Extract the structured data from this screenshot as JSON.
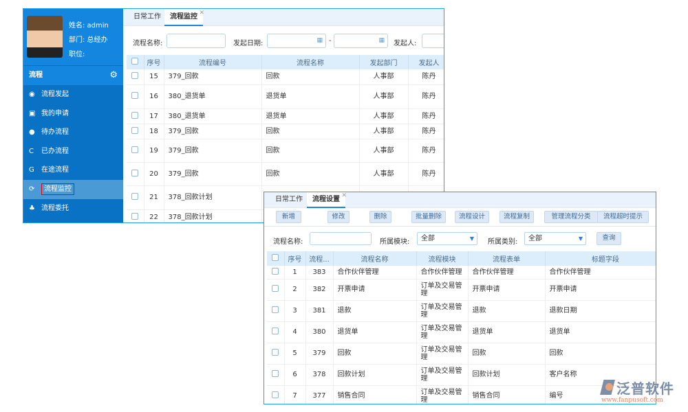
{
  "w1": {
    "profile": {
      "name": "姓名: admin",
      "dept": "部门: 总经办",
      "position": "职位:"
    },
    "section": "流程",
    "menu": [
      {
        "icon": "lightbulb-icon",
        "glyph": "◉",
        "label": "流程发起"
      },
      {
        "icon": "document-icon",
        "glyph": "▣",
        "label": "我的申请"
      },
      {
        "icon": "alert-icon",
        "glyph": "●",
        "label": "待办流程"
      },
      {
        "icon": "refresh-icon",
        "glyph": "C",
        "label": "已办流程"
      },
      {
        "icon": "google-plus-icon",
        "glyph": "G",
        "label": "在途流程"
      },
      {
        "icon": "sync-icon",
        "glyph": "⟳",
        "label": "流程监控"
      },
      {
        "icon": "sitemap-icon",
        "glyph": "♣",
        "label": "流程委托"
      }
    ],
    "active_menu": 5,
    "tabs": [
      "日常工作",
      "流程监控"
    ],
    "filters": {
      "name_label": "流程名称:",
      "date_label": "发起日期:",
      "dash": "-",
      "initiator_label": "发起人:"
    },
    "headers": [
      "序号",
      "流程编号",
      "流程名称",
      "发起部门",
      "发起人"
    ],
    "rows": [
      [
        "15",
        "379_回款",
        "回款",
        "人事部",
        "陈丹"
      ],
      [
        "16",
        "380_退货单",
        "退货单",
        "人事部",
        "陈丹"
      ],
      [
        "17",
        "380_退货单",
        "退货单",
        "人事部",
        "陈丹"
      ],
      [
        "18",
        "379_回款",
        "回款",
        "人事部",
        "陈丹"
      ],
      [
        "19",
        "379_回款",
        "回款",
        "人事部",
        "陈丹"
      ],
      [
        "20",
        "379_回款",
        "回款",
        "人事部",
        "陈丹"
      ],
      [
        "21",
        "378_回款计划",
        "",
        "",
        ""
      ],
      [
        "22",
        "378_回款计划",
        "",
        "",
        ""
      ]
    ]
  },
  "w2": {
    "tabs": [
      "日常工作",
      "流程设置"
    ],
    "buttons": [
      "新增",
      "修改",
      "删除",
      "批量删除",
      "流程设计",
      "流程复制",
      "管理流程分类",
      "流程超时提示"
    ],
    "filters": {
      "name_label": "流程名称:",
      "module_label": "所属模块:",
      "module_value": "全部",
      "category_label": "所属类别:",
      "category_value": "全部",
      "query": "查询"
    },
    "headers": [
      "序号",
      "流程...",
      "流程名称",
      "流程模块",
      "流程表单",
      "标题字段"
    ],
    "rows": [
      [
        "1",
        "383",
        "合作伙伴管理",
        "合作伙伴管理",
        "合作伙伴管理",
        "合作伙伴管理"
      ],
      [
        "2",
        "382",
        "开票申请",
        "订单及交易管理",
        "开票申请",
        "开票申请"
      ],
      [
        "3",
        "381",
        "退款",
        "订单及交易管理",
        "退款",
        "退款日期"
      ],
      [
        "4",
        "380",
        "退货单",
        "订单及交易管理",
        "退货单",
        "退货单"
      ],
      [
        "5",
        "379",
        "回款",
        "订单及交易管理",
        "回款",
        "回款"
      ],
      [
        "6",
        "378",
        "回款计划",
        "订单及交易管理",
        "回款计划",
        "客户名称"
      ],
      [
        "7",
        "377",
        "销售合同",
        "订单及交易管理",
        "销售合同",
        "编号"
      ]
    ]
  },
  "logo": {
    "name": "泛普软件",
    "url": "www.fanpusoft.com"
  }
}
